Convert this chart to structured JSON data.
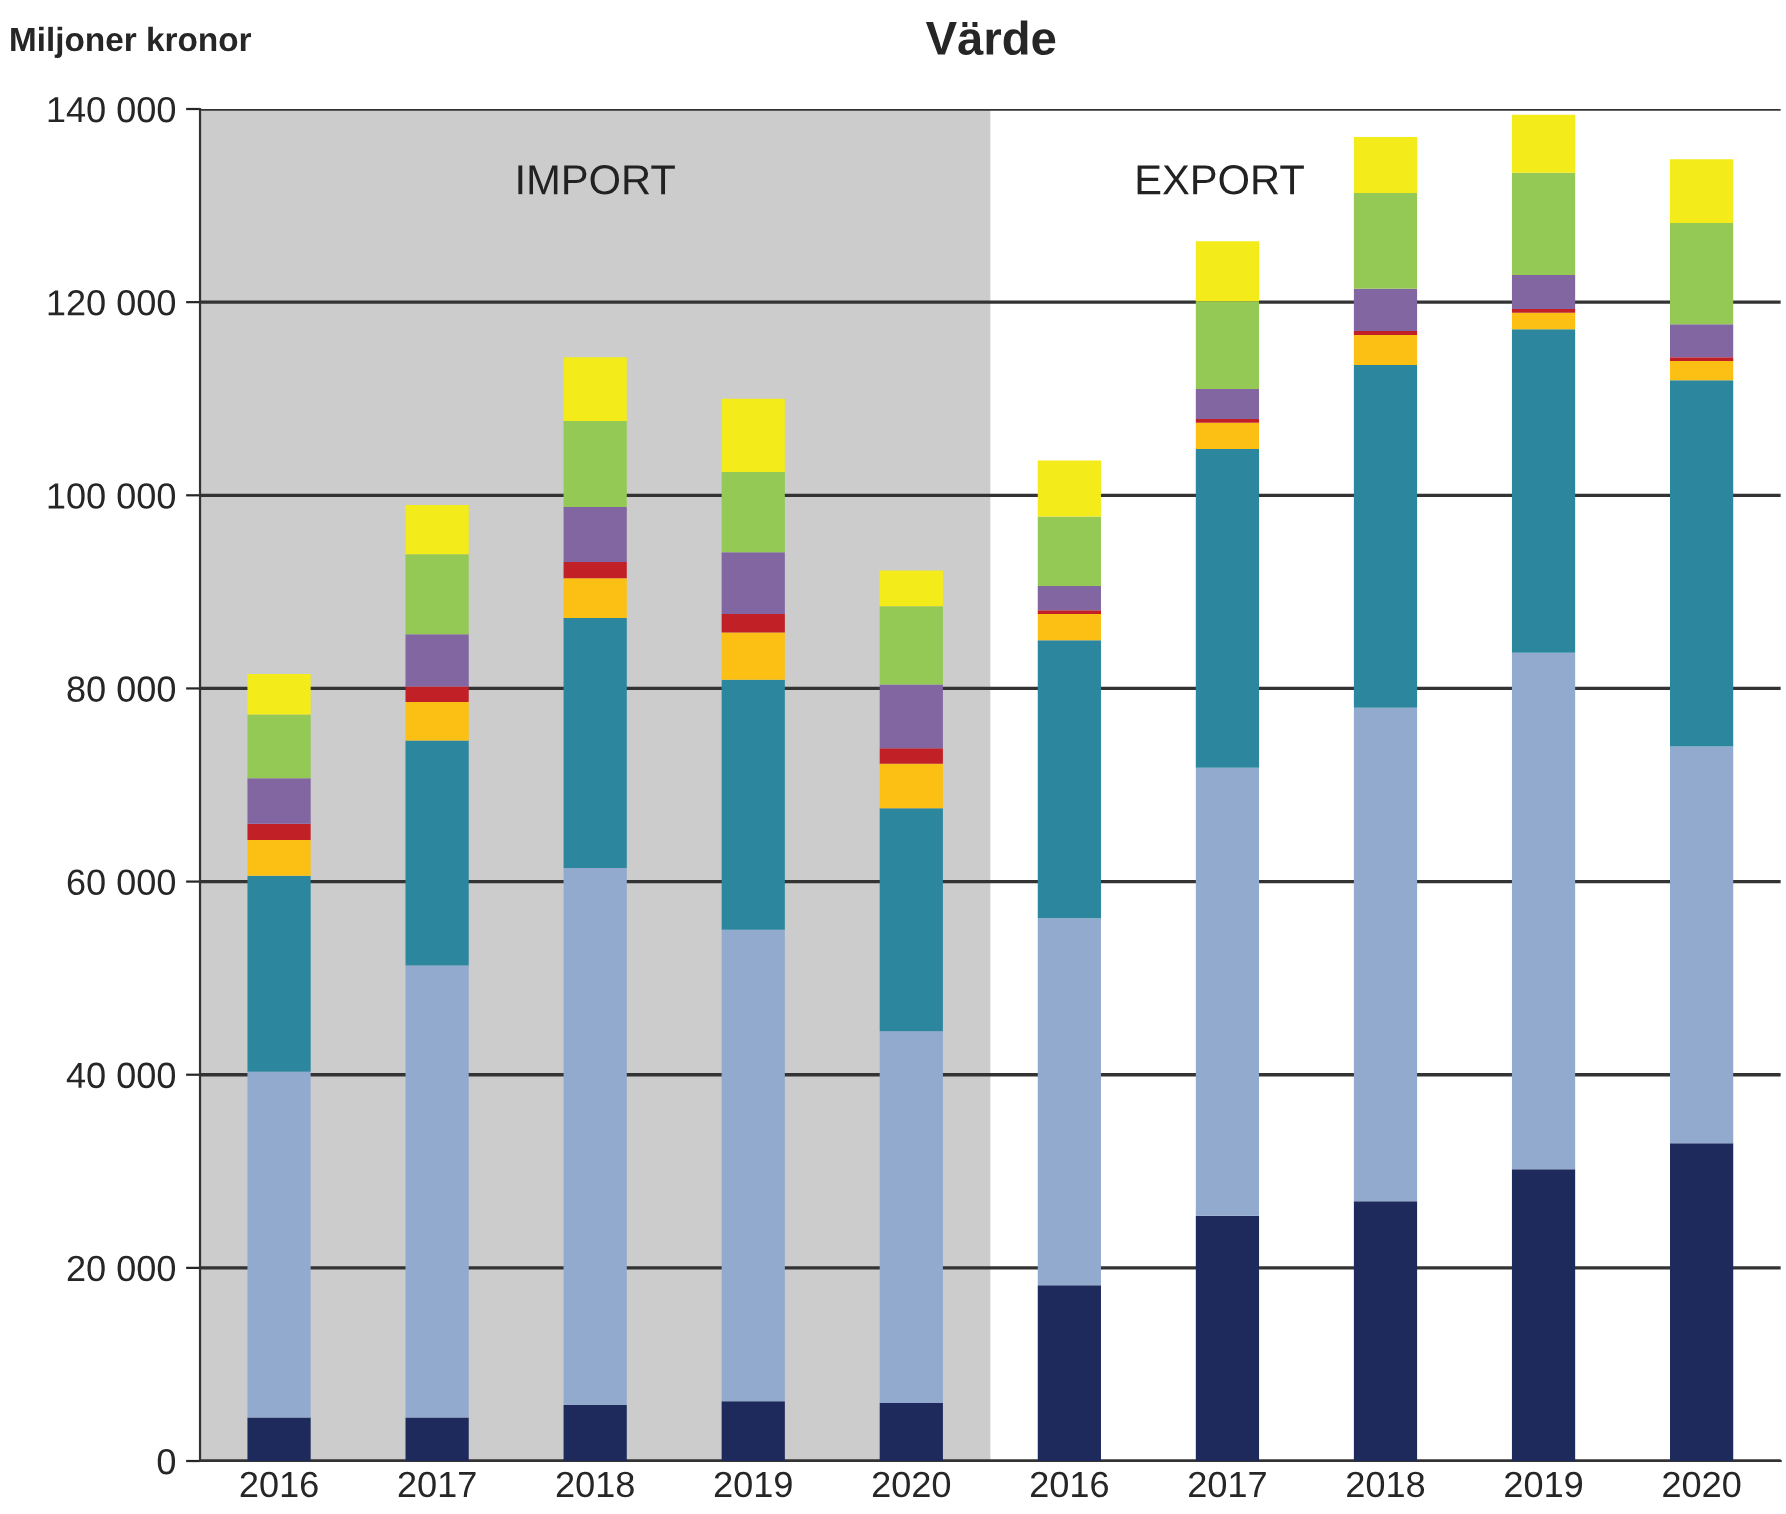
{
  "chart_data": {
    "type": "bar",
    "title": "Värde",
    "ylabel": "Miljoner kronor",
    "stacked": true,
    "grid": "y",
    "legend": false,
    "categories": [
      "2016",
      "2017",
      "2018",
      "2019",
      "2020",
      "2016",
      "2017",
      "2018",
      "2019",
      "2020"
    ],
    "ylim": [
      0,
      140000
    ],
    "yticks": [
      0,
      {
        "value": 20000,
        "label": "20 000"
      },
      {
        "value": 40000,
        "label": "40 000"
      },
      {
        "value": 60000,
        "label": "60 000"
      },
      {
        "value": 80000,
        "label": "80 000"
      },
      {
        "value": 100000,
        "label": "100 000"
      },
      {
        "value": 120000,
        "label": "120 000"
      },
      {
        "value": 140000,
        "label": "140 000"
      }
    ],
    "bands": [
      {
        "axis": "x",
        "from": "2016",
        "to": "2020",
        "label": "IMPORT",
        "color": "#cccccc"
      }
    ],
    "annotations": [
      "EXPORT"
    ],
    "series": [
      {
        "color": "#1f2a5c",
        "values": [
          4500,
          4500,
          5800,
          6200,
          6000,
          18200,
          25400,
          26900,
          30200,
          32900
        ]
      },
      {
        "color": "#93aacf",
        "values": [
          35800,
          46800,
          55600,
          48800,
          38500,
          38000,
          46400,
          51100,
          53500,
          41100
        ]
      },
      {
        "color": "#2c879e",
        "values": [
          20300,
          23300,
          25900,
          25900,
          23100,
          28800,
          33000,
          35500,
          33500,
          37900
        ]
      },
      {
        "color": "#fbc013",
        "values": [
          3700,
          4000,
          4100,
          4900,
          4600,
          2700,
          2700,
          3100,
          1700,
          2000
        ]
      },
      {
        "color": "#c02026",
        "values": [
          1700,
          1600,
          1700,
          1900,
          1600,
          400,
          400,
          400,
          400,
          400
        ]
      },
      {
        "color": "#8166a2",
        "values": [
          4700,
          5400,
          5700,
          6400,
          6600,
          2500,
          3100,
          4400,
          3500,
          3400
        ]
      },
      {
        "color": "#93c954",
        "values": [
          6600,
          8300,
          8900,
          8300,
          8100,
          7200,
          9100,
          9900,
          10600,
          10500
        ]
      },
      {
        "color": "#f3eb1a",
        "values": [
          4200,
          5100,
          6600,
          7600,
          3700,
          5800,
          6200,
          5800,
          6000,
          6600
        ]
      }
    ]
  }
}
